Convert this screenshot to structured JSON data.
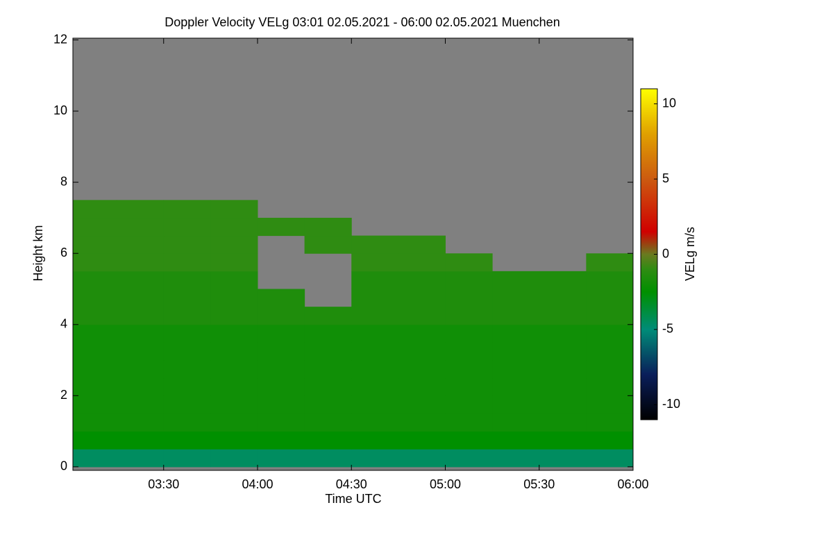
{
  "chart_data": {
    "type": "heatmap",
    "title": "Doppler Velocity VELg   03:01 02.05.2021 - 06:00 02.05.2021 Muenchen",
    "xlabel": "Time UTC",
    "ylabel": "Height km",
    "colorbar_label": "VELg m/s",
    "xlim": [
      3.0167,
      6.0
    ],
    "xticks": [
      {
        "value": 3.5,
        "label": "03:30"
      },
      {
        "value": 4.0,
        "label": "04:00"
      },
      {
        "value": 4.5,
        "label": "04:30"
      },
      {
        "value": 5.0,
        "label": "05:00"
      },
      {
        "value": 5.5,
        "label": "05:30"
      },
      {
        "value": 6.0,
        "label": "06:00"
      }
    ],
    "ylim": [
      -0.1,
      12.05
    ],
    "yticks": [
      0,
      2,
      4,
      6,
      8,
      10,
      12
    ],
    "zlim": [
      -11,
      11
    ],
    "zticks": [
      -10,
      -5,
      0,
      5,
      10
    ],
    "background_color": "#808080",
    "colormap": [
      [
        -11,
        "#000000"
      ],
      [
        -8,
        "#0a1e5a"
      ],
      [
        -5,
        "#008c78"
      ],
      [
        -2.5,
        "#009000"
      ],
      [
        -1,
        "#2f8c12"
      ],
      [
        0,
        "#6a7a20"
      ],
      [
        1.5,
        "#d00000"
      ],
      [
        5,
        "#cc5a10"
      ],
      [
        8,
        "#e0a000"
      ],
      [
        11,
        "#ffff00"
      ]
    ],
    "x_bins": [
      3.0167,
      3.25,
      3.5,
      3.75,
      4.0,
      4.25,
      4.5,
      4.75,
      5.0,
      5.25,
      5.5,
      5.75,
      6.0
    ],
    "y_bins": [
      0,
      0.5,
      1,
      1.5,
      2,
      2.5,
      3,
      3.5,
      4,
      4.5,
      5,
      5.5,
      6,
      6.5,
      7,
      7.5,
      8,
      8.5,
      9,
      9.5,
      10,
      10.5,
      11,
      11.5,
      12
    ],
    "z": [
      [
        -4.5,
        -4.5,
        -4.5,
        -4.5,
        -4.5,
        -4.5,
        -4.5,
        -4.5,
        -4.5,
        -4.5,
        -4.5,
        -4.5
      ],
      [
        -2.5,
        -2.5,
        -2.5,
        -2.5,
        -2.5,
        -2.5,
        -2.5,
        -2.5,
        -2.5,
        -2.5,
        -2.5,
        -2.5
      ],
      [
        -2,
        -2,
        -2,
        -2,
        -2,
        -2,
        -2,
        -2,
        -2,
        -2,
        -2,
        -2
      ],
      [
        -2,
        -2,
        -2,
        -2,
        -2,
        -2,
        -2,
        -2,
        -2,
        -2,
        -2,
        -2
      ],
      [
        -2,
        -2,
        -2,
        -2,
        -2,
        -2,
        -2,
        -2,
        -2,
        -2,
        -2,
        -2
      ],
      [
        -2,
        -2,
        -2,
        -2,
        -2,
        -2,
        -2,
        -2,
        -2,
        -2,
        -2,
        -2
      ],
      [
        -2,
        -2,
        -2,
        -2,
        -2,
        -2,
        -2,
        -2,
        -2,
        -2,
        -2,
        -2
      ],
      [
        -2,
        -2,
        -2,
        -2,
        -2,
        -2,
        -2,
        -2,
        -2,
        -2,
        -2,
        -2
      ],
      [
        -1.5,
        -1.5,
        -1.5,
        -1.5,
        -1.5,
        -1.5,
        -1.5,
        -1.5,
        -1.5,
        -1.5,
        -1.5,
        -1.5
      ],
      [
        -1.5,
        -1.5,
        -1.5,
        -1.5,
        -1.5,
        null,
        -1.5,
        -1.5,
        -1.5,
        -1.5,
        -1.5,
        -1.5
      ],
      [
        -1.5,
        -1.5,
        -1.5,
        -1.5,
        null,
        null,
        -1.5,
        -1.5,
        -1.5,
        -1.5,
        -1.5,
        -1.5
      ],
      [
        -1,
        -1,
        -1,
        -1,
        null,
        null,
        -1,
        -1,
        -1,
        null,
        null,
        -1
      ],
      [
        -1,
        -1,
        -1,
        -1,
        null,
        -1,
        -1,
        -1,
        null,
        null,
        null,
        null
      ],
      [
        -1,
        -1,
        -1,
        -1,
        -1,
        -1,
        null,
        null,
        null,
        null,
        null,
        null
      ],
      [
        -1,
        -1,
        -1,
        -1,
        null,
        null,
        null,
        null,
        null,
        null,
        null,
        null
      ],
      [
        null,
        null,
        null,
        null,
        null,
        null,
        null,
        null,
        null,
        null,
        null,
        null
      ],
      [
        null,
        null,
        null,
        null,
        null,
        null,
        null,
        null,
        null,
        null,
        null,
        null
      ],
      [
        null,
        null,
        null,
        null,
        null,
        null,
        null,
        null,
        null,
        null,
        null,
        null
      ],
      [
        null,
        null,
        null,
        null,
        null,
        null,
        null,
        null,
        null,
        null,
        null,
        null
      ],
      [
        null,
        null,
        null,
        null,
        null,
        null,
        null,
        null,
        null,
        null,
        null,
        null
      ],
      [
        null,
        null,
        null,
        null,
        null,
        null,
        null,
        null,
        null,
        null,
        null,
        null
      ],
      [
        null,
        null,
        null,
        null,
        null,
        null,
        null,
        null,
        null,
        null,
        null,
        null
      ],
      [
        null,
        null,
        null,
        null,
        null,
        null,
        null,
        null,
        null,
        null,
        null,
        null
      ],
      [
        null,
        null,
        null,
        null,
        null,
        null,
        null,
        null,
        null,
        null,
        null,
        null
      ]
    ]
  }
}
